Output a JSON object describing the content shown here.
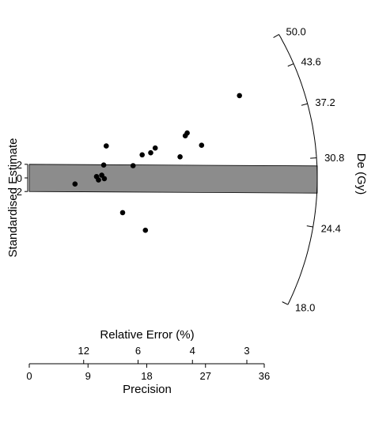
{
  "chart_data": {
    "type": "radial",
    "ylabel": "Standardised Estimate",
    "y_ticks": [
      "2",
      "0",
      "-2"
    ],
    "z_label": "De (Gy)",
    "z_ticks": [
      18.0,
      24.4,
      30.8,
      37.2,
      43.6,
      50.0
    ],
    "z_tick_labels": [
      "18.0",
      "24.4",
      "30.8",
      "37.2",
      "43.6",
      "50.0"
    ],
    "central_value": 28.8,
    "x_top_label": "Relative Error (%)",
    "x_top_ticks": [
      12,
      6,
      4,
      3
    ],
    "x_top_tick_labels": [
      "12",
      "6",
      "4",
      "3"
    ],
    "x_bottom_label": "Precision",
    "x_bottom_ticks": [
      0,
      9,
      18,
      27,
      36
    ],
    "x_bottom_tick_labels": [
      "0",
      "9",
      "18",
      "27",
      "36"
    ],
    "xlim": [
      0,
      36
    ],
    "ylim": [
      -10,
      13.5
    ],
    "band": {
      "lower": -2,
      "upper": 2,
      "color": "#8c8c8c"
    },
    "points": [
      {
        "precision": 7.0,
        "z": -0.9
      },
      {
        "precision": 10.3,
        "z": 0.2
      },
      {
        "precision": 10.6,
        "z": -0.3
      },
      {
        "precision": 11.1,
        "z": 0.4
      },
      {
        "precision": 11.4,
        "z": 1.9
      },
      {
        "precision": 11.5,
        "z": -0.1
      },
      {
        "precision": 11.8,
        "z": 4.7
      },
      {
        "precision": 14.3,
        "z": -5.1
      },
      {
        "precision": 15.9,
        "z": 1.8
      },
      {
        "precision": 17.3,
        "z": 3.4
      },
      {
        "precision": 17.8,
        "z": -7.7
      },
      {
        "precision": 18.6,
        "z": 3.7
      },
      {
        "precision": 19.3,
        "z": 4.4
      },
      {
        "precision": 23.1,
        "z": 3.1
      },
      {
        "precision": 23.9,
        "z": 6.2
      },
      {
        "precision": 24.2,
        "z": 6.6
      },
      {
        "precision": 26.4,
        "z": 4.8
      },
      {
        "precision": 32.2,
        "z": 12.1
      }
    ],
    "point_color": "#000000",
    "grid": false
  }
}
